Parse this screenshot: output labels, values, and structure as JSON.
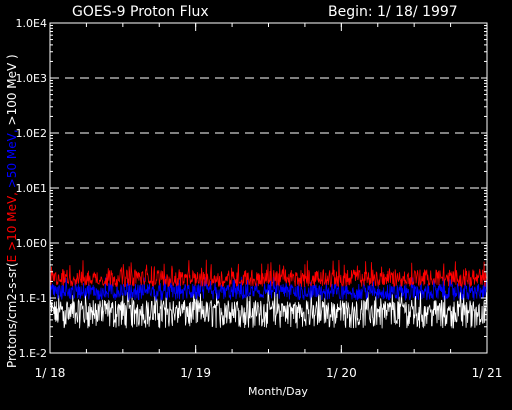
{
  "chart_data": {
    "type": "line",
    "title": "GOES-9 Proton Flux",
    "subtitle": "Begin: 1/ 18/ 1997",
    "xlabel": "Month/Day",
    "ylabel_parts": {
      "units": "Protons/cm2-s-sr(",
      "e10": "E >10 MeV,",
      "e50": " >50 MeV,",
      "e100": " >100 MeV )"
    },
    "x_ticks": [
      "1/ 18",
      "1/ 19",
      "1/ 20",
      "1/ 21"
    ],
    "y_ticks": [
      "1.0E4",
      "1.0E3",
      "1.0E2",
      "1.0E1",
      "1.0E0",
      "1.E-1",
      "1.E-2"
    ],
    "y_scale": "log",
    "ylim": [
      0.01,
      10000
    ],
    "xlim_days": [
      0,
      3
    ],
    "grid": "dashed horizontal at decades 1, 10, 100, 1000",
    "series": [
      {
        "name": "E >10 MeV",
        "color": "#ff0000",
        "typical": 0.22,
        "min": 0.16,
        "max": 0.5
      },
      {
        "name": ">50 MeV",
        "color": "#0000ff",
        "typical": 0.13,
        "min": 0.09,
        "max": 0.25
      },
      {
        "name": ">100 MeV",
        "color": "#ffffff",
        "typical": 0.06,
        "min": 0.028,
        "max": 0.14
      }
    ]
  }
}
